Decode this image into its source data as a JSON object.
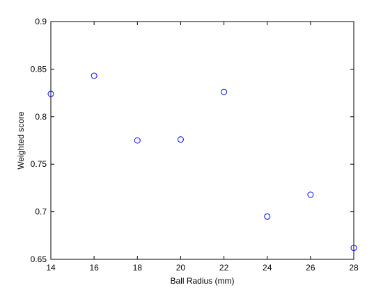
{
  "chart_data": {
    "type": "scatter",
    "title": "",
    "xlabel": "Ball Radius (mm)",
    "ylabel": "Weighted score",
    "xlim": [
      14,
      28
    ],
    "ylim": [
      0.65,
      0.9
    ],
    "xticks": [
      "14",
      "16",
      "18",
      "20",
      "22",
      "24",
      "26",
      "28"
    ],
    "yticks": [
      "0.65",
      "0.7",
      "0.75",
      "0.8",
      "0.85",
      "0.9"
    ],
    "grid": false,
    "marker_color": "#0000ff",
    "marker": "open-circle",
    "points": [
      {
        "x": 14,
        "y": 0.824
      },
      {
        "x": 16,
        "y": 0.843
      },
      {
        "x": 18,
        "y": 0.775
      },
      {
        "x": 20,
        "y": 0.776
      },
      {
        "x": 22,
        "y": 0.826
      },
      {
        "x": 24,
        "y": 0.695
      },
      {
        "x": 26,
        "y": 0.718
      },
      {
        "x": 28,
        "y": 0.662
      }
    ]
  }
}
